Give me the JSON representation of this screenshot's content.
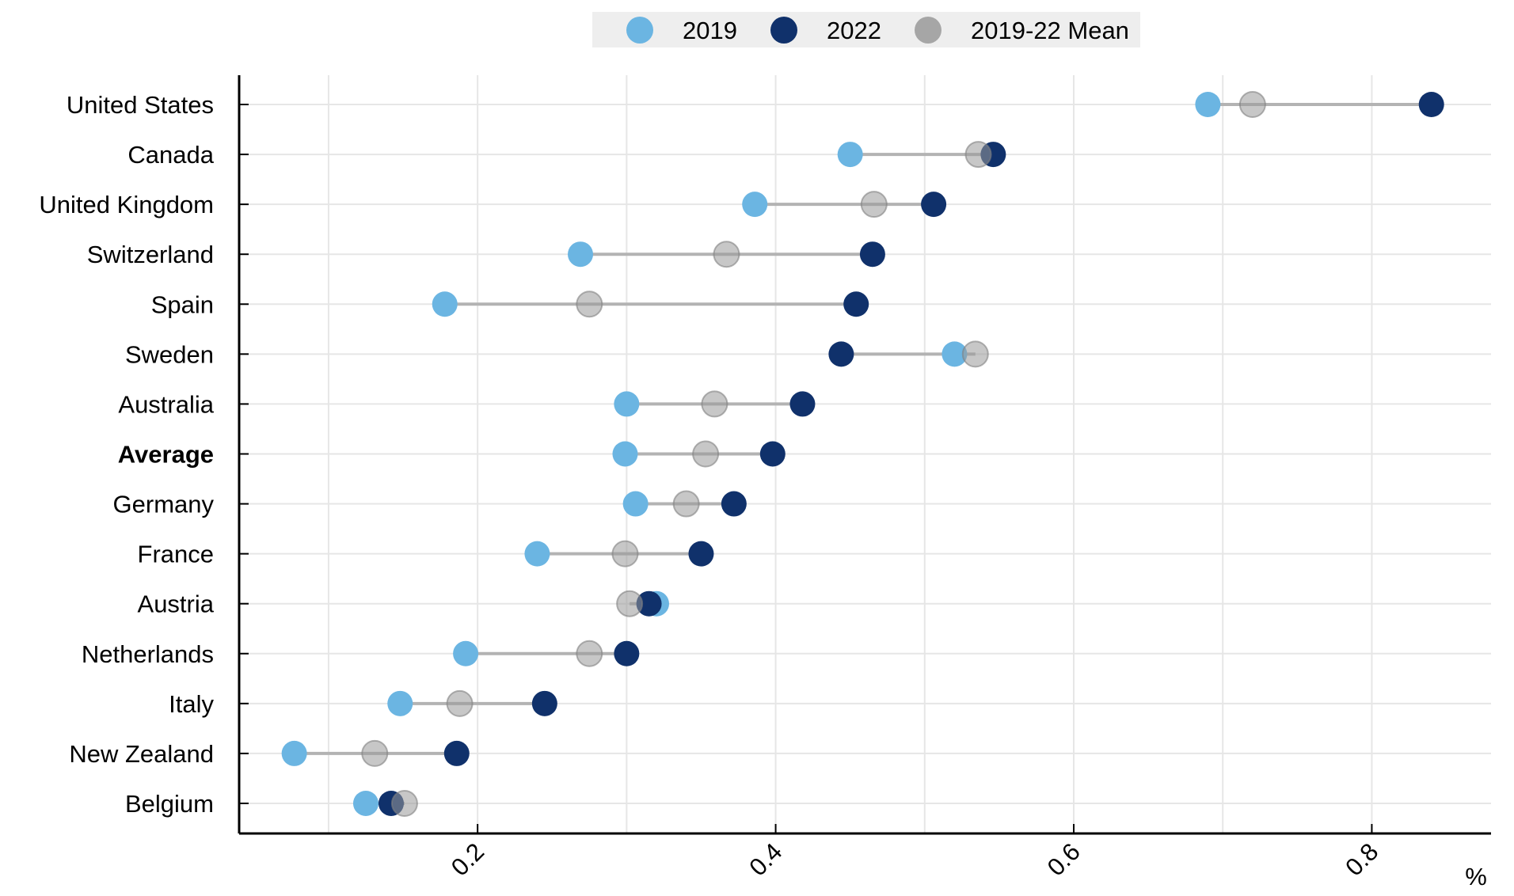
{
  "chart_data": {
    "type": "dumbbell",
    "unit_label": "%",
    "xlim": [
      0.04,
      0.88
    ],
    "x_ticks": [
      0.2,
      0.4,
      0.6,
      0.8
    ],
    "x_tick_labels": [
      "0.2",
      "0.4",
      "0.6",
      "0.8"
    ],
    "x_minor_grid": [
      0.1,
      0.3,
      0.5,
      0.7
    ],
    "grid": true,
    "legend_position": "top",
    "series": [
      {
        "name": "2019",
        "color": "#6bb5e2"
      },
      {
        "name": "2022",
        "color": "#10316b"
      },
      {
        "name": "2019-22 Mean",
        "color": "#999999"
      }
    ],
    "categories": [
      "United States",
      "Canada",
      "United Kingdom",
      "Switzerland",
      "Spain",
      "Sweden",
      "Australia",
      "Average",
      "Germany",
      "France",
      "Austria",
      "Netherlands",
      "Italy",
      "New Zealand",
      "Belgium"
    ],
    "bold_categories": [
      "Average"
    ],
    "values_2019": [
      0.69,
      0.45,
      0.386,
      0.269,
      0.178,
      0.52,
      0.3,
      0.299,
      0.306,
      0.24,
      0.32,
      0.192,
      0.148,
      0.077,
      0.125
    ],
    "values_2022": [
      0.84,
      0.546,
      0.506,
      0.465,
      0.454,
      0.444,
      0.418,
      0.398,
      0.372,
      0.35,
      0.315,
      0.3,
      0.245,
      0.186,
      0.142
    ],
    "values_mean": [
      0.72,
      0.536,
      0.466,
      0.367,
      0.275,
      0.534,
      0.359,
      0.353,
      0.34,
      0.299,
      0.302,
      0.275,
      0.188,
      0.131,
      0.151
    ]
  }
}
